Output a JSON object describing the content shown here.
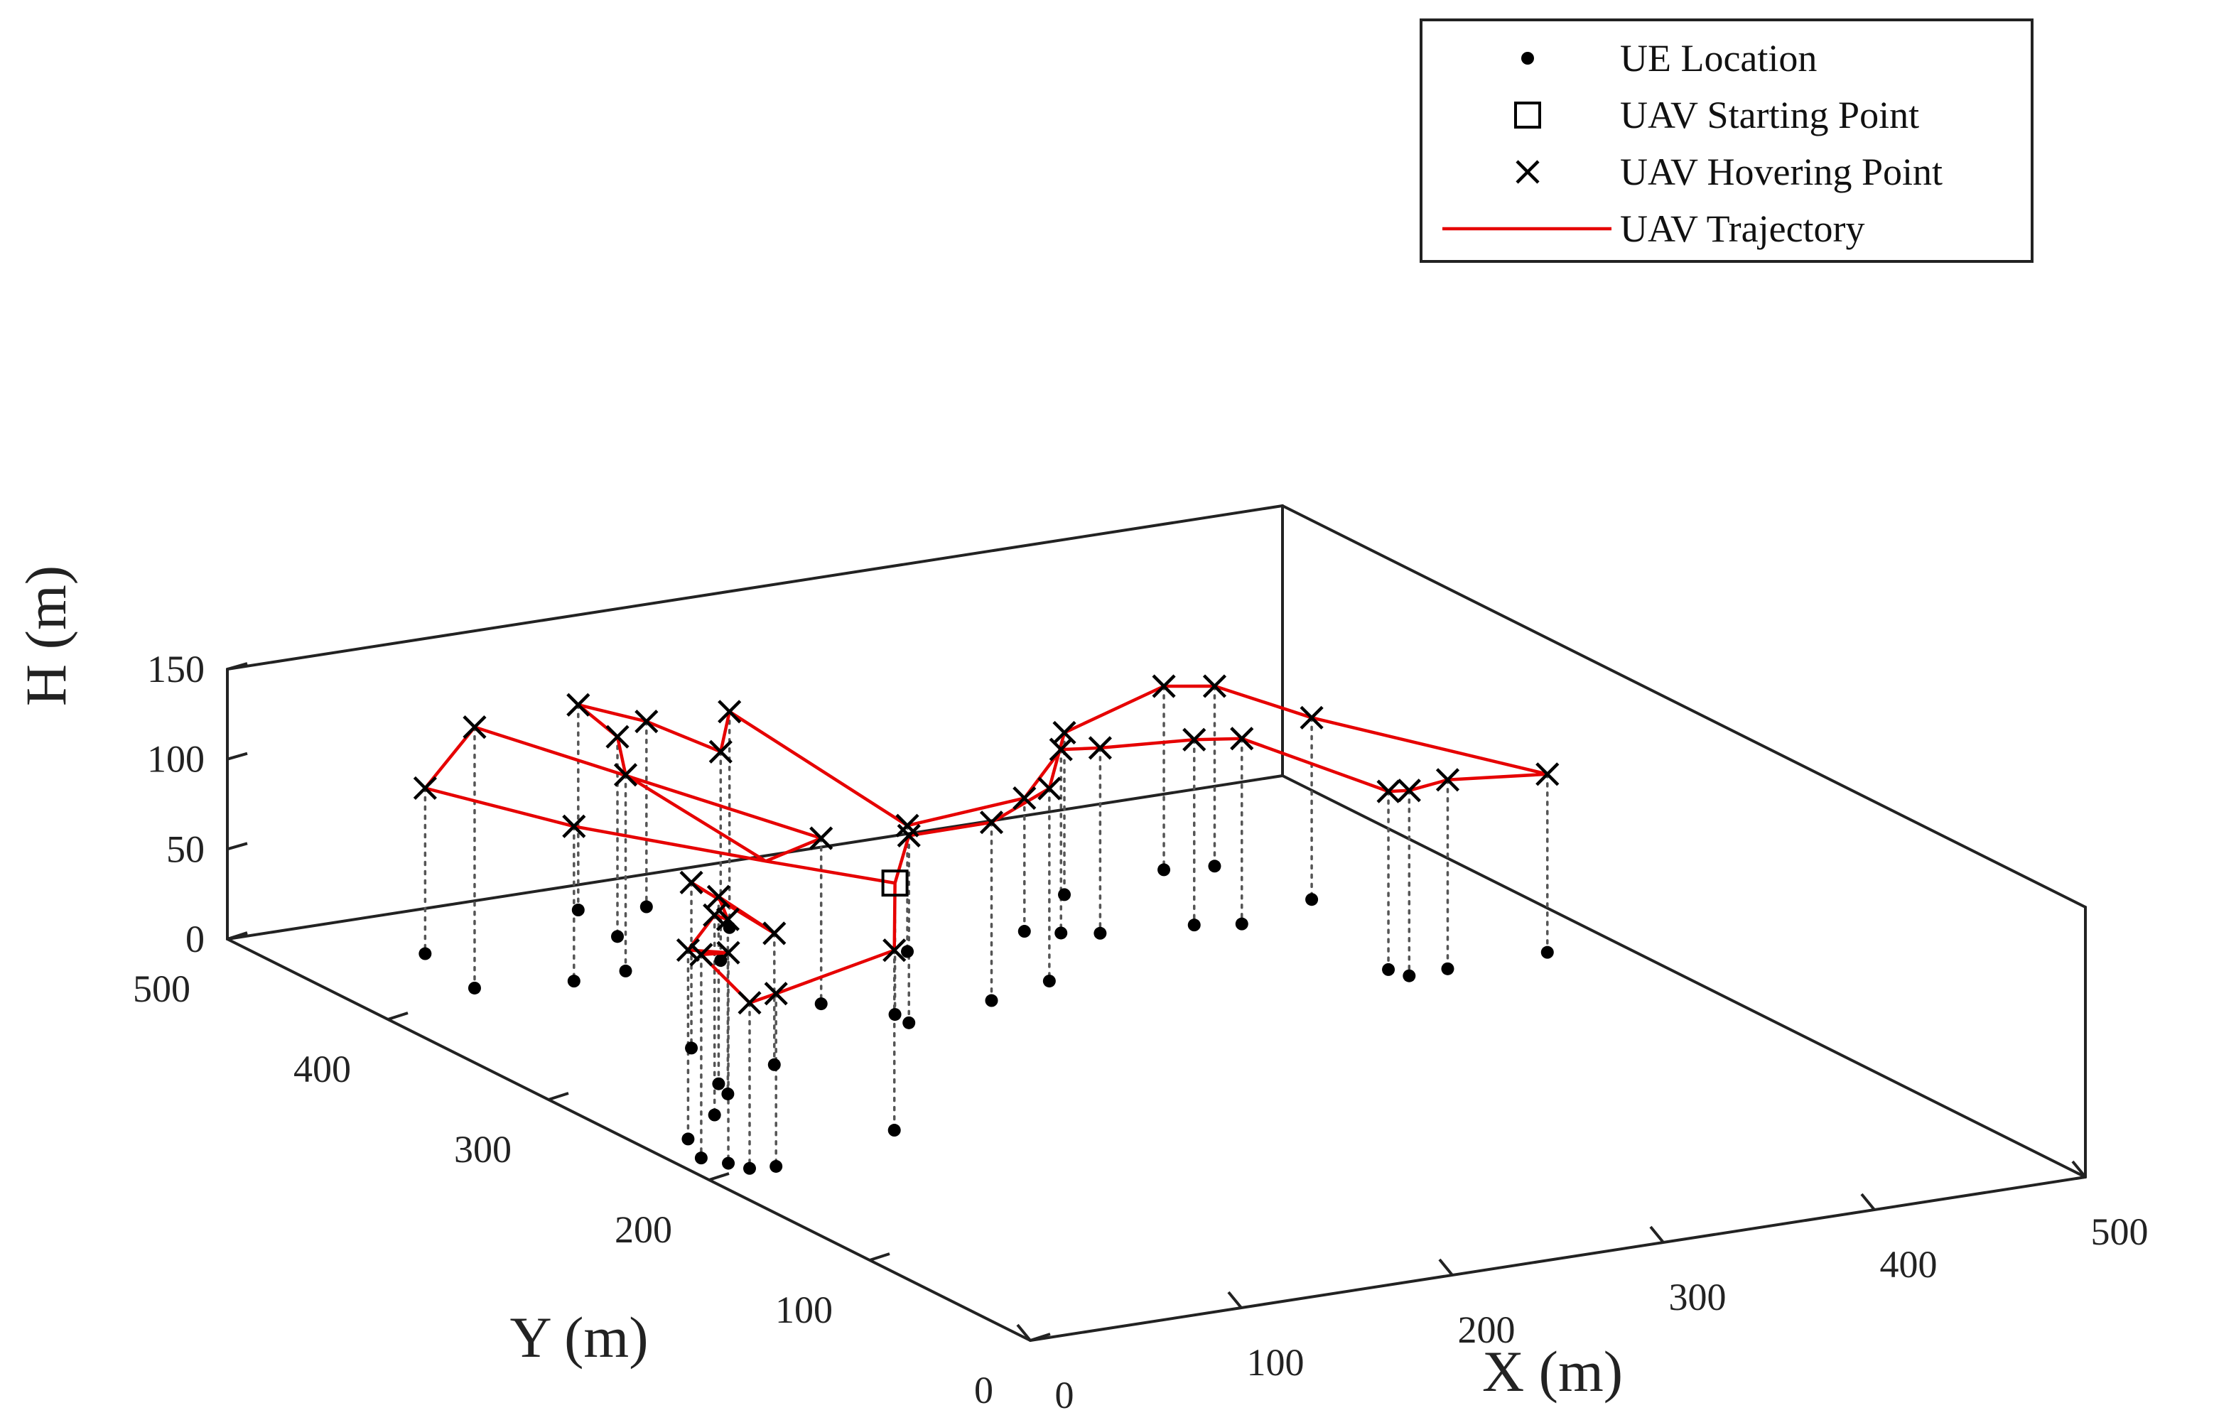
{
  "chart_data": {
    "type": "scatter",
    "projection": "3d",
    "xlabel": "X (m)",
    "ylabel": "Y (m)",
    "zlabel": "H (m)",
    "xlim": [
      0,
      500
    ],
    "ylim": [
      0,
      500
    ],
    "zlim": [
      0,
      150
    ],
    "xticks": [
      "0",
      "100",
      "200",
      "300",
      "400",
      "500"
    ],
    "yticks": [
      "0",
      "100",
      "200",
      "300",
      "400",
      "500"
    ],
    "zticks": [
      "0",
      "50",
      "100",
      "150"
    ],
    "grid": false,
    "box": true,
    "legend": {
      "position": "top-right",
      "entries": [
        {
          "label": "UE Location",
          "marker": "dot"
        },
        {
          "label": "UAV Starting Point",
          "marker": "square"
        },
        {
          "label": "UAV Hovering Point",
          "marker": "x"
        },
        {
          "label": "UAV Trajectory",
          "marker": "line"
        }
      ]
    },
    "colors": {
      "trajectory": "#e60000",
      "markers": "#000000",
      "axes": "#222222",
      "drop_lines": "#555555"
    },
    "start_point": [
      187,
      330,
      73
    ],
    "hover_points": [
      [
        186,
        320,
        104
      ],
      [
        232,
        329,
        99
      ],
      [
        267,
        339,
        107
      ],
      [
        335,
        419,
        90
      ],
      [
        389,
        428,
        102
      ],
      [
        410,
        424,
        100
      ],
      [
        421,
        378,
        101
      ],
      [
        468,
        293,
        99
      ],
      [
        420,
        292,
        105
      ],
      [
        401,
        291,
        103
      ],
      [
        398,
        300,
        99
      ],
      [
        378,
        365,
        103
      ],
      [
        360,
        371,
        103
      ],
      [
        320,
        377,
        103
      ],
      [
        306,
        383,
        102
      ],
      [
        294,
        390,
        74
      ],
      [
        237,
        388,
        70
      ],
      [
        190,
        437,
        120
      ],
      [
        163,
        407,
        116
      ],
      [
        175,
        469,
        103
      ],
      [
        148,
        476,
        114
      ],
      [
        143,
        445,
        111
      ],
      [
        121,
        411,
        109
      ],
      [
        95,
        409,
        86
      ],
      [
        61,
        457,
        92
      ],
      [
        54,
        417,
        145
      ],
      [
        107,
        300,
        73
      ],
      [
        89,
        328,
        92
      ],
      [
        168,
        351,
        92
      ],
      [
        103,
        220,
        100
      ],
      [
        34,
        203,
        96
      ],
      [
        23,
        205,
        92
      ],
      [
        13,
        222,
        113
      ],
      [
        19,
        213,
        117
      ],
      [
        22,
        242,
        105
      ],
      [
        49,
        261,
        111
      ],
      [
        69,
        279,
        97
      ],
      [
        73,
        290,
        104
      ]
    ],
    "trajectory": [
      [
        187,
        330,
        73
      ],
      [
        186,
        320,
        104
      ],
      [
        232,
        329,
        99
      ],
      [
        267,
        339,
        107
      ],
      [
        335,
        419,
        90
      ],
      [
        389,
        428,
        102
      ],
      [
        410,
        424,
        100
      ],
      [
        421,
        378,
        101
      ],
      [
        468,
        293,
        99
      ],
      [
        420,
        292,
        105
      ],
      [
        401,
        291,
        103
      ],
      [
        398,
        300,
        99
      ],
      [
        378,
        365,
        103
      ],
      [
        360,
        371,
        103
      ],
      [
        320,
        377,
        103
      ],
      [
        306,
        383,
        102
      ],
      [
        294,
        390,
        74
      ],
      [
        237,
        388,
        70
      ],
      [
        190,
        437,
        120
      ],
      [
        163,
        407,
        116
      ],
      [
        175,
        469,
        103
      ],
      [
        148,
        476,
        114
      ],
      [
        143,
        445,
        111
      ],
      [
        121,
        411,
        109
      ],
      [
        160,
        375,
        70
      ],
      [
        95,
        409,
        86
      ],
      [
        61,
        457,
        92
      ],
      [
        54,
        417,
        145
      ],
      [
        168,
        351,
        92
      ],
      [
        160,
        375,
        70
      ],
      [
        187,
        330,
        73
      ],
      [
        103,
        220,
        100
      ],
      [
        34,
        203,
        96
      ],
      [
        23,
        205,
        92
      ],
      [
        13,
        222,
        113
      ],
      [
        19,
        213,
        117
      ],
      [
        22,
        242,
        105
      ],
      [
        49,
        261,
        111
      ],
      [
        69,
        279,
        97
      ],
      [
        73,
        290,
        104
      ],
      [
        107,
        300,
        73
      ],
      [
        89,
        328,
        92
      ]
    ]
  }
}
